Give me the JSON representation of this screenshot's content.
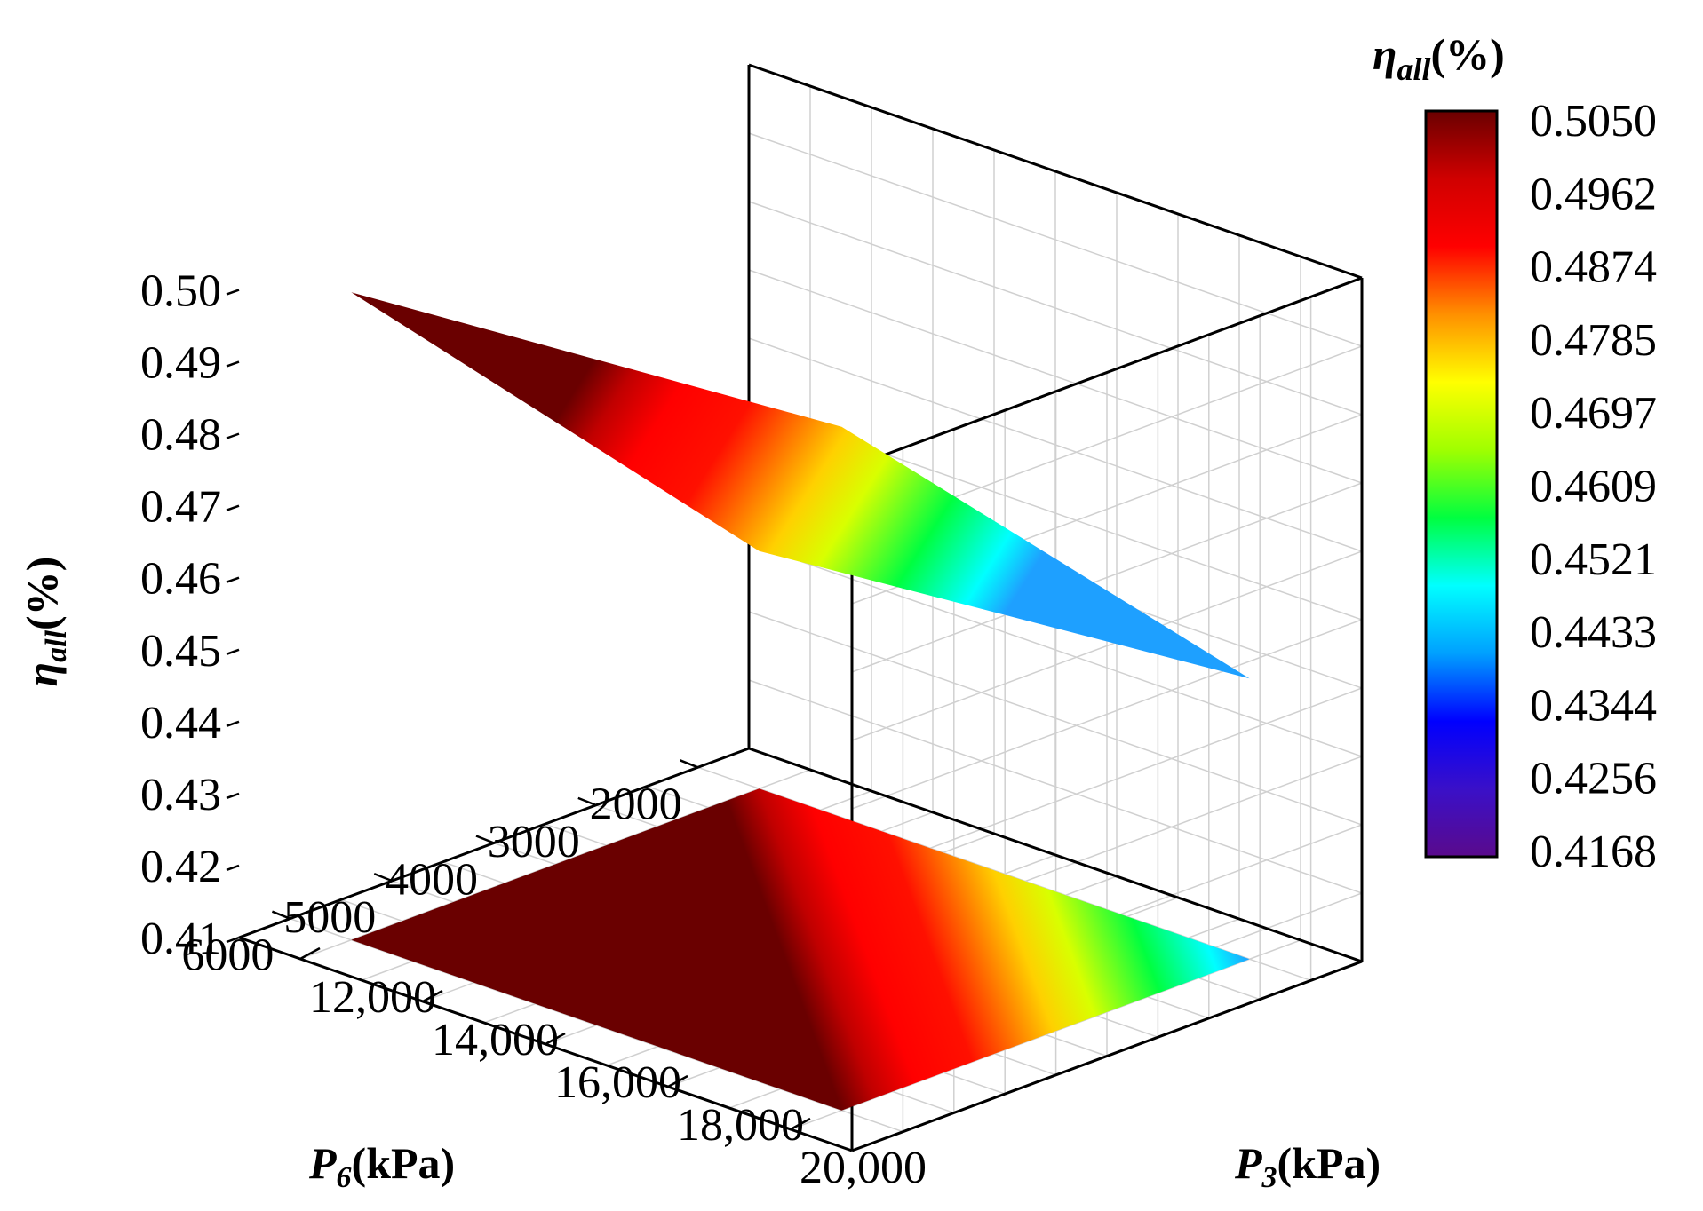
{
  "chart_data": {
    "type": "surface",
    "title": "",
    "xlabel": {
      "var": "P",
      "sub": "6",
      "unit": "(kPa)"
    },
    "ylabel": {
      "var": "P",
      "sub": "3",
      "unit": "(kPa)"
    },
    "zlabel": {
      "var": "η",
      "sub": "all",
      "unit": "(%)"
    },
    "x_ticks": [
      "2000",
      "3000",
      "4000",
      "5000",
      "6000"
    ],
    "y_ticks": [
      "12,000",
      "14,000",
      "16,000",
      "18,000",
      "20,000"
    ],
    "z_ticks": [
      "0.41",
      "0.42",
      "0.43",
      "0.44",
      "0.45",
      "0.46",
      "0.47",
      "0.48",
      "0.49",
      "0.50"
    ],
    "xlim": [
      1500,
      6500
    ],
    "ylim": [
      11000,
      21000
    ],
    "zlim": [
      0.41,
      0.505
    ],
    "surface_corners": [
      {
        "P6": 2000,
        "P3": 12000,
        "eta": 0.443
      },
      {
        "P6": 2000,
        "P3": 20000,
        "eta": 0.449
      },
      {
        "P6": 6000,
        "P3": 20000,
        "eta": 0.505
      },
      {
        "P6": 6000,
        "P3": 12000,
        "eta": 0.5
      }
    ],
    "colorbar": {
      "title": {
        "var": "η",
        "sub": "all",
        "unit": "(%)"
      },
      "ticks": [
        "0.5050",
        "0.4962",
        "0.4874",
        "0.4785",
        "0.4697",
        "0.4609",
        "0.4521",
        "0.4433",
        "0.4344",
        "0.4256",
        "0.4168"
      ],
      "min": 0.4168,
      "max": 0.505
    },
    "colormap": [
      "#5a0a8c",
      "#3a10c8",
      "#0000ff",
      "#00a0ff",
      "#00ffff",
      "#00ff40",
      "#a0ff00",
      "#ffff00",
      "#ff9000",
      "#ff0000",
      "#d00000",
      "#6a0000"
    ],
    "projection_on_floor": true
  }
}
